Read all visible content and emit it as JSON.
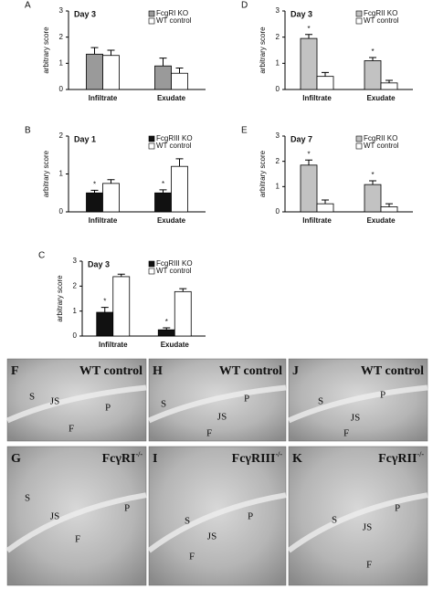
{
  "chart_data": [
    {
      "type": "bar",
      "panel": "A",
      "title": "Day 3",
      "ylabel": "arbitrary score",
      "categories": [
        "Infiltrate",
        "Exudate"
      ],
      "ylim": [
        0,
        3
      ],
      "yticks": [
        0,
        1,
        2,
        3
      ],
      "series": [
        {
          "name": "FcgRI KO",
          "color": "#9a9a9a",
          "values": [
            1.35,
            0.9
          ],
          "errors": [
            0.25,
            0.3
          ]
        },
        {
          "name": "WT control",
          "color": "#ffffff",
          "values": [
            1.3,
            0.62
          ],
          "errors": [
            0.2,
            0.2
          ]
        }
      ]
    },
    {
      "type": "bar",
      "panel": "D",
      "title": "Day 3",
      "ylabel": "arbitrary score",
      "categories": [
        "Infiltrate",
        "Exudate"
      ],
      "ylim": [
        0,
        3
      ],
      "yticks": [
        0,
        1,
        2,
        3
      ],
      "series": [
        {
          "name": "FcgRII KO",
          "color": "#c2c2c2",
          "values": [
            1.95,
            1.1
          ],
          "errors": [
            0.15,
            0.12
          ],
          "annotations": [
            "*",
            "*"
          ]
        },
        {
          "name": "WT control",
          "color": "#ffffff",
          "values": [
            0.5,
            0.25
          ],
          "errors": [
            0.15,
            0.1
          ]
        }
      ]
    },
    {
      "type": "bar",
      "panel": "B",
      "title": "Day 1",
      "ylabel": "arbitrary score",
      "categories": [
        "Infiltrate",
        "Exudate"
      ],
      "ylim": [
        0,
        2
      ],
      "yticks": [
        0,
        1,
        2
      ],
      "series": [
        {
          "name": "FcgRIII KO",
          "color": "#111111",
          "values": [
            0.5,
            0.5
          ],
          "errors": [
            0.07,
            0.08
          ],
          "annotations": [
            "*",
            "*"
          ]
        },
        {
          "name": "WT control",
          "color": "#ffffff",
          "values": [
            0.75,
            1.2
          ],
          "errors": [
            0.1,
            0.2
          ]
        }
      ]
    },
    {
      "type": "bar",
      "panel": "E",
      "title": "Day 7",
      "ylabel": "arbitrary score",
      "categories": [
        "Infiltrate",
        "Exudate"
      ],
      "ylim": [
        0,
        3
      ],
      "yticks": [
        0,
        1,
        2,
        3
      ],
      "series": [
        {
          "name": "FcgRII KO",
          "color": "#c2c2c2",
          "values": [
            1.85,
            1.08
          ],
          "errors": [
            0.2,
            0.15
          ],
          "annotations": [
            "*",
            "*"
          ]
        },
        {
          "name": "WT control",
          "color": "#ffffff",
          "values": [
            0.32,
            0.2
          ],
          "errors": [
            0.15,
            0.12
          ]
        }
      ]
    },
    {
      "type": "bar",
      "panel": "C",
      "title": "Day 3",
      "ylabel": "arbitrary score",
      "categories": [
        "Infiltrate",
        "Exudate"
      ],
      "ylim": [
        0,
        3
      ],
      "yticks": [
        0,
        1,
        2,
        3
      ],
      "series": [
        {
          "name": "FcgRIII KO",
          "color": "#111111",
          "values": [
            0.95,
            0.25
          ],
          "errors": [
            0.2,
            0.08
          ],
          "annotations": [
            "*",
            "*"
          ]
        },
        {
          "name": "WT control",
          "color": "#ffffff",
          "values": [
            2.38,
            1.78
          ],
          "errors": [
            0.1,
            0.12
          ]
        }
      ]
    }
  ],
  "images": [
    {
      "panel": "F",
      "caption": "WT control",
      "labels": [
        "S",
        "JS",
        "P",
        "F"
      ]
    },
    {
      "panel": "H",
      "caption": "WT control",
      "labels": [
        "S",
        "JS",
        "P",
        "F"
      ]
    },
    {
      "panel": "J",
      "caption": "WT control",
      "labels": [
        "S",
        "JS",
        "P",
        "F"
      ]
    },
    {
      "panel": "G",
      "caption": "FcγRI",
      "sup": "-/-",
      "labels": [
        "S",
        "JS",
        "P",
        "F"
      ]
    },
    {
      "panel": "I",
      "caption": "FcγRIII",
      "sup": "-/-",
      "labels": [
        "S",
        "JS",
        "P",
        "F"
      ]
    },
    {
      "panel": "K",
      "caption": "FcγRII",
      "sup": "-/-",
      "labels": [
        "S",
        "JS",
        "P",
        "F"
      ]
    }
  ]
}
